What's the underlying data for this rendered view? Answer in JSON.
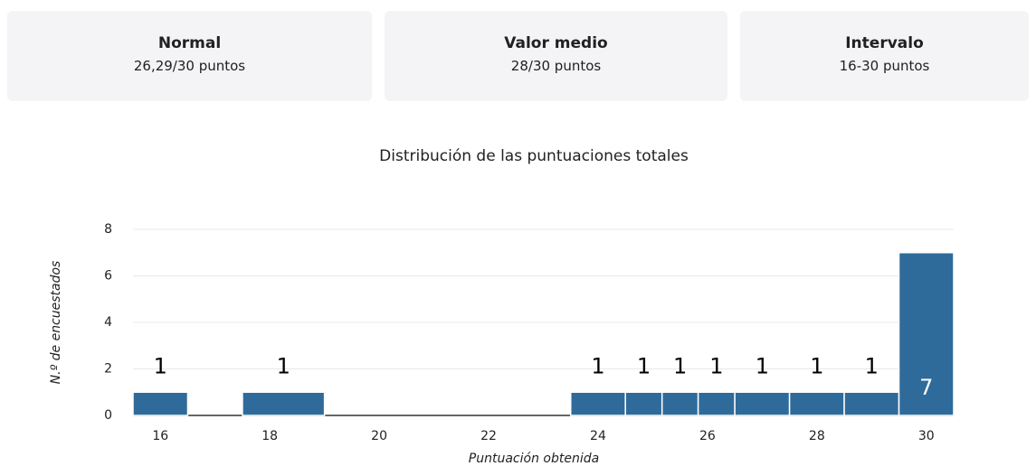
{
  "cards": [
    {
      "title": "Normal",
      "value": "26,29/30 puntos"
    },
    {
      "title": "Valor medio",
      "value": "28/30 puntos"
    },
    {
      "title": "Intervalo",
      "value": "16-30 puntos"
    }
  ],
  "chart_data": {
    "type": "histogram",
    "title": "Distribución de las puntuaciones totales",
    "x_label": "Puntuación obtenida",
    "y_label": "N.º de encuestados",
    "bins": [
      15.5,
      16.5,
      17.5,
      19,
      20.5,
      22,
      23.5,
      24.5,
      25.17,
      25.83,
      26.5,
      27.5,
      28.5,
      29.5,
      30.5
    ],
    "counts": [
      1,
      0,
      1,
      0,
      0,
      0,
      1,
      1,
      1,
      1,
      1,
      1,
      1,
      7
    ],
    "color": "#2f6b9a",
    "xlim": [
      15.5,
      30.5
    ],
    "xticks": [
      16,
      18,
      20,
      22,
      24,
      26,
      28,
      30
    ],
    "ylim": [
      0,
      8
    ],
    "yticks": [
      0,
      2,
      4,
      6,
      8
    ],
    "grid": true
  }
}
